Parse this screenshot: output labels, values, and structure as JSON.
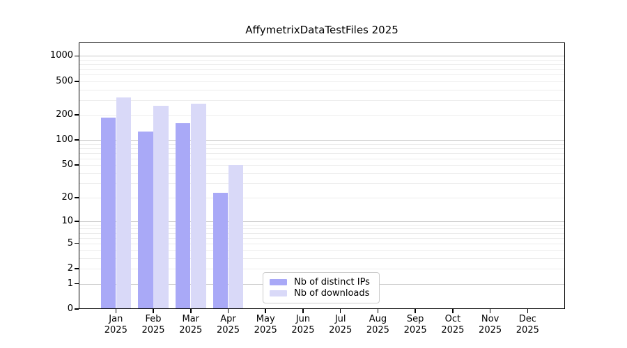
{
  "title": "AffymetrixDataTestFiles 2025",
  "colors": {
    "distinct_ips": "#a9a9f7",
    "downloads": "#d9d9f8",
    "grid_major": "#c6c6c6",
    "grid_minor": "#ececec",
    "axis_frame": "#000000",
    "legend_border": "#cccccc",
    "background": "#ffffff",
    "text": "#000000"
  },
  "legend": {
    "items": [
      {
        "label": "Nb of distinct IPs",
        "color": "#a9a9f7"
      },
      {
        "label": "Nb of downloads",
        "color": "#d9d9f8"
      }
    ]
  },
  "chart_data": {
    "type": "bar",
    "title": "AffymetrixDataTestFiles 2025",
    "categories": [
      "Jan",
      "Feb",
      "Mar",
      "Apr",
      "May",
      "Jun",
      "Jul",
      "Aug",
      "Sep",
      "Oct",
      "Nov",
      "Dec"
    ],
    "category_year": "2025",
    "series": [
      {
        "name": "Nb of distinct IPs",
        "color": "#a9a9f7",
        "values": [
          185,
          127,
          159,
          23,
          0,
          0,
          0,
          0,
          0,
          0,
          0,
          0
        ]
      },
      {
        "name": "Nb of downloads",
        "color": "#d9d9f8",
        "values": [
          320,
          255,
          272,
          50,
          0,
          0,
          0,
          0,
          0,
          0,
          0,
          0
        ]
      }
    ],
    "yscale": "log10(1+value)",
    "yticks": [
      0,
      1,
      2,
      5,
      10,
      20,
      50,
      100,
      200,
      500,
      1000
    ],
    "major_gridlines": [
      1,
      10,
      100,
      1000
    ],
    "minor_gridline_bases": [
      1,
      10,
      100
    ],
    "ylim": [
      0,
      1448
    ],
    "xlabel": "",
    "ylabel": "",
    "grid": "on",
    "legend_position": "inside lower center-right"
  }
}
